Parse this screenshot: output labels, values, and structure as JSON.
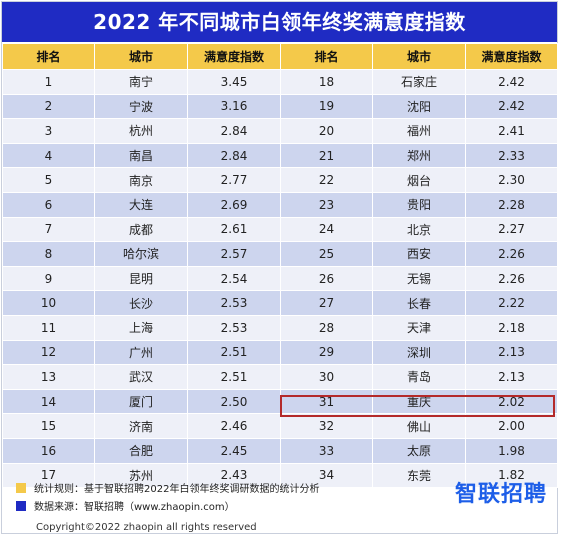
{
  "chart_data": {
    "type": "table",
    "title": "2022 年不同城市白领年终奖满意度指数",
    "columns": [
      "排名",
      "城市",
      "满意度指数",
      "排名",
      "城市",
      "满意度指数"
    ],
    "rows": [
      {
        "rank": 1,
        "city": "南宁",
        "index": "3.45"
      },
      {
        "rank": 2,
        "city": "宁波",
        "index": "3.16"
      },
      {
        "rank": 3,
        "city": "杭州",
        "index": "2.84"
      },
      {
        "rank": 4,
        "city": "南昌",
        "index": "2.84"
      },
      {
        "rank": 5,
        "city": "南京",
        "index": "2.77"
      },
      {
        "rank": 6,
        "city": "大连",
        "index": "2.69"
      },
      {
        "rank": 7,
        "city": "成都",
        "index": "2.61"
      },
      {
        "rank": 8,
        "city": "哈尔滨",
        "index": "2.57"
      },
      {
        "rank": 9,
        "city": "昆明",
        "index": "2.54"
      },
      {
        "rank": 10,
        "city": "长沙",
        "index": "2.53"
      },
      {
        "rank": 11,
        "city": "上海",
        "index": "2.53"
      },
      {
        "rank": 12,
        "city": "广州",
        "index": "2.51"
      },
      {
        "rank": 13,
        "city": "武汉",
        "index": "2.51"
      },
      {
        "rank": 14,
        "city": "厦门",
        "index": "2.50"
      },
      {
        "rank": 15,
        "city": "济南",
        "index": "2.46"
      },
      {
        "rank": 16,
        "city": "合肥",
        "index": "2.45"
      },
      {
        "rank": 17,
        "city": "苏州",
        "index": "2.43"
      },
      {
        "rank": 18,
        "city": "石家庄",
        "index": "2.42"
      },
      {
        "rank": 19,
        "city": "沈阳",
        "index": "2.42"
      },
      {
        "rank": 20,
        "city": "福州",
        "index": "2.41"
      },
      {
        "rank": 21,
        "city": "郑州",
        "index": "2.33"
      },
      {
        "rank": 22,
        "city": "烟台",
        "index": "2.30"
      },
      {
        "rank": 23,
        "city": "贵阳",
        "index": "2.28"
      },
      {
        "rank": 24,
        "city": "北京",
        "index": "2.27"
      },
      {
        "rank": 25,
        "city": "西安",
        "index": "2.26"
      },
      {
        "rank": 26,
        "city": "无锡",
        "index": "2.26"
      },
      {
        "rank": 27,
        "city": "长春",
        "index": "2.22"
      },
      {
        "rank": 28,
        "city": "天津",
        "index": "2.18"
      },
      {
        "rank": 29,
        "city": "深圳",
        "index": "2.13"
      },
      {
        "rank": 30,
        "city": "青岛",
        "index": "2.13"
      },
      {
        "rank": 31,
        "city": "重庆",
        "index": "2.02"
      },
      {
        "rank": 32,
        "city": "佛山",
        "index": "2.00"
      },
      {
        "rank": 33,
        "city": "太原",
        "index": "1.98"
      },
      {
        "rank": 34,
        "city": "东莞",
        "index": "1.82"
      }
    ],
    "highlighted_city": "佛山"
  },
  "footer": {
    "note1": "统计规则：基于智联招聘2022年白领年终奖调研数据的统计分析",
    "note2": "数据来源：智联招聘（www.zhaopin.com）",
    "copyright": "Copyright©2022 zhaopin all rights reserved",
    "logo": "智联招聘"
  },
  "colors": {
    "title_bg": "#1f2bc3",
    "header_bg": "#f4c94a",
    "row_light": "#eef0f8",
    "row_dark": "#cdd5ee",
    "highlight_border": "#b42a2a",
    "logo": "#1d5ee8"
  }
}
